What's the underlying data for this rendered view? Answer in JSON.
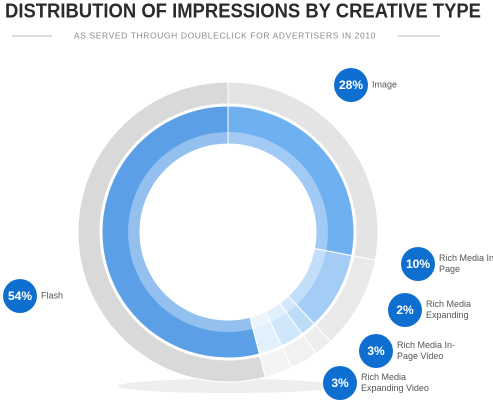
{
  "chart_data": {
    "type": "donut",
    "title": "DISTRIBUTION OF IMPRESSIONS BY CREATIVE TYPE",
    "subtitle": "AS SERVED THROUGH DOUBLECLICK FOR ADVERTISERS IN 2010",
    "categories": [
      "Image",
      "Rich Media In-Page",
      "Rich Media Expanding",
      "Rich Media In-Page Video",
      "Rich Media Expanding Video",
      "Flash"
    ],
    "values": [
      28,
      10,
      2,
      3,
      3,
      54
    ],
    "value_labels": [
      "28%",
      "10%",
      "2%",
      "3%",
      "3%",
      "54%"
    ],
    "colors": [
      "#6fb0f0",
      "#a3cdf5",
      "#bcdcf8",
      "#cfe6fa",
      "#e2f0fb",
      "#5b9fe6"
    ],
    "label_color": "#0f6fd0"
  }
}
